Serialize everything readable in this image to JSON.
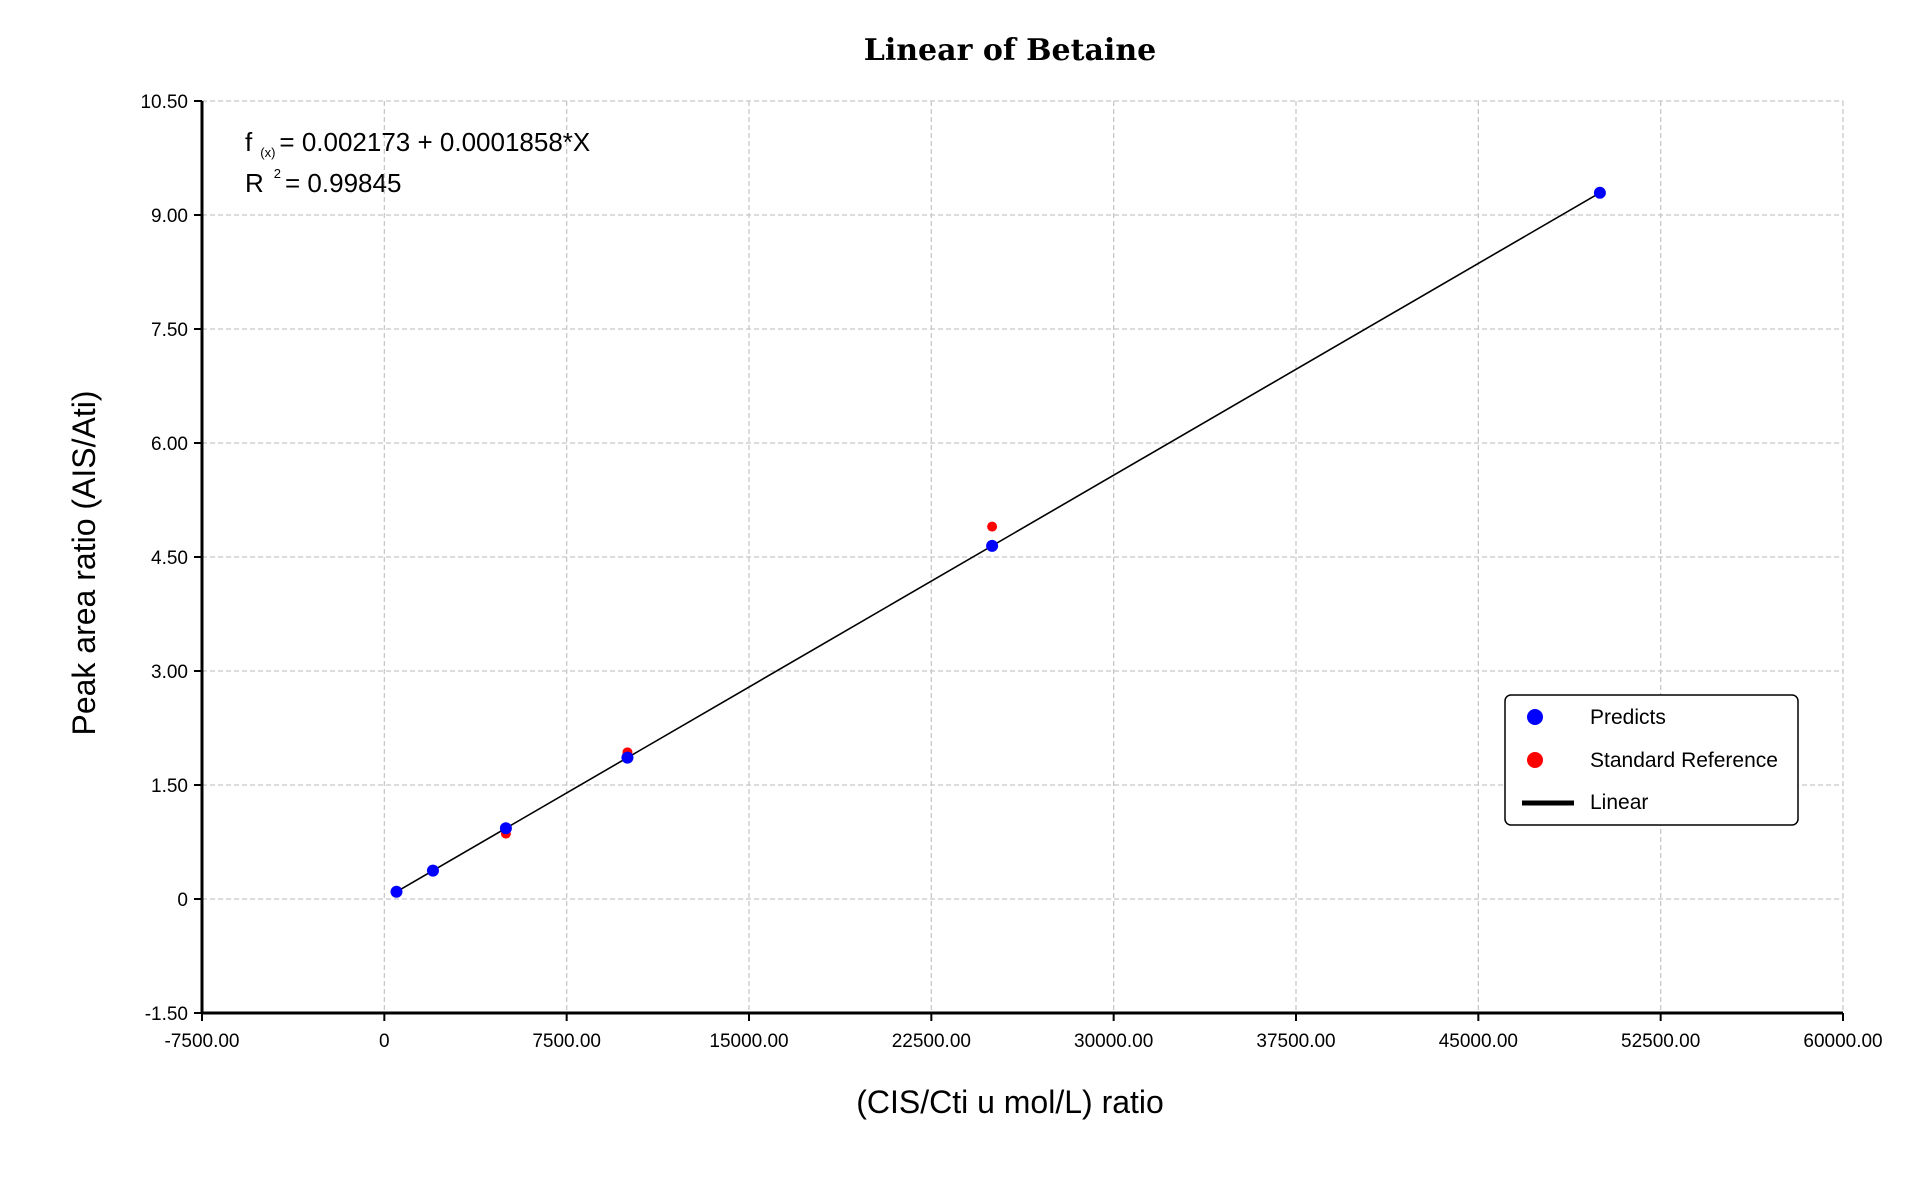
{
  "chart_data": {
    "type": "scatter",
    "title": "Linear of Betaine",
    "xlabel": "(CIS/Cti u mol/L) ratio",
    "ylabel": "Peak area ratio (AIS/Ati)",
    "xlim": [
      -7500,
      60000
    ],
    "ylim": [
      -1.5,
      10.5
    ],
    "x_ticks": [
      "-7500.00",
      "0",
      "7500.00",
      "15000.00",
      "22500.00",
      "30000.00",
      "37500.00",
      "45000.00",
      "52500.00",
      "60000.00"
    ],
    "x_tick_values": [
      -7500,
      0,
      7500,
      15000,
      22500,
      30000,
      37500,
      45000,
      52500,
      60000
    ],
    "y_ticks": [
      "10.50",
      "9.00",
      "7.50",
      "6.00",
      "4.50",
      "3.00",
      "1.50",
      "0",
      "-1.50"
    ],
    "y_tick_values": [
      10.5,
      9.0,
      7.5,
      6.0,
      4.5,
      3.0,
      1.5,
      0,
      -1.5
    ],
    "grid": true,
    "legend_position": "bottom-right",
    "equation": {
      "f_prefix": "f",
      "f_sub": "(x)",
      "f_text": " = 0.002173 + 0.0001858*X",
      "r_prefix": "R",
      "r_sup": "2",
      "r_text": " = 0.99845"
    },
    "series": [
      {
        "name": "Predicts",
        "kind": "scatter",
        "color": "#0000ff",
        "x": [
          500,
          2000,
          5000,
          10000,
          25000,
          50000
        ],
        "y": [
          0.095,
          0.374,
          0.931,
          1.86,
          4.647,
          9.292
        ]
      },
      {
        "name": "Standard Reference",
        "kind": "scatter",
        "color": "#ff0000",
        "x": [
          500,
          2000,
          5000,
          10000,
          25000,
          50000
        ],
        "y": [
          0.1,
          0.37,
          0.86,
          1.93,
          4.9,
          9.3
        ]
      },
      {
        "name": "Linear",
        "kind": "line",
        "color": "#000000",
        "x": [
          500,
          50000
        ],
        "y": [
          0.095,
          9.292
        ]
      }
    ]
  }
}
